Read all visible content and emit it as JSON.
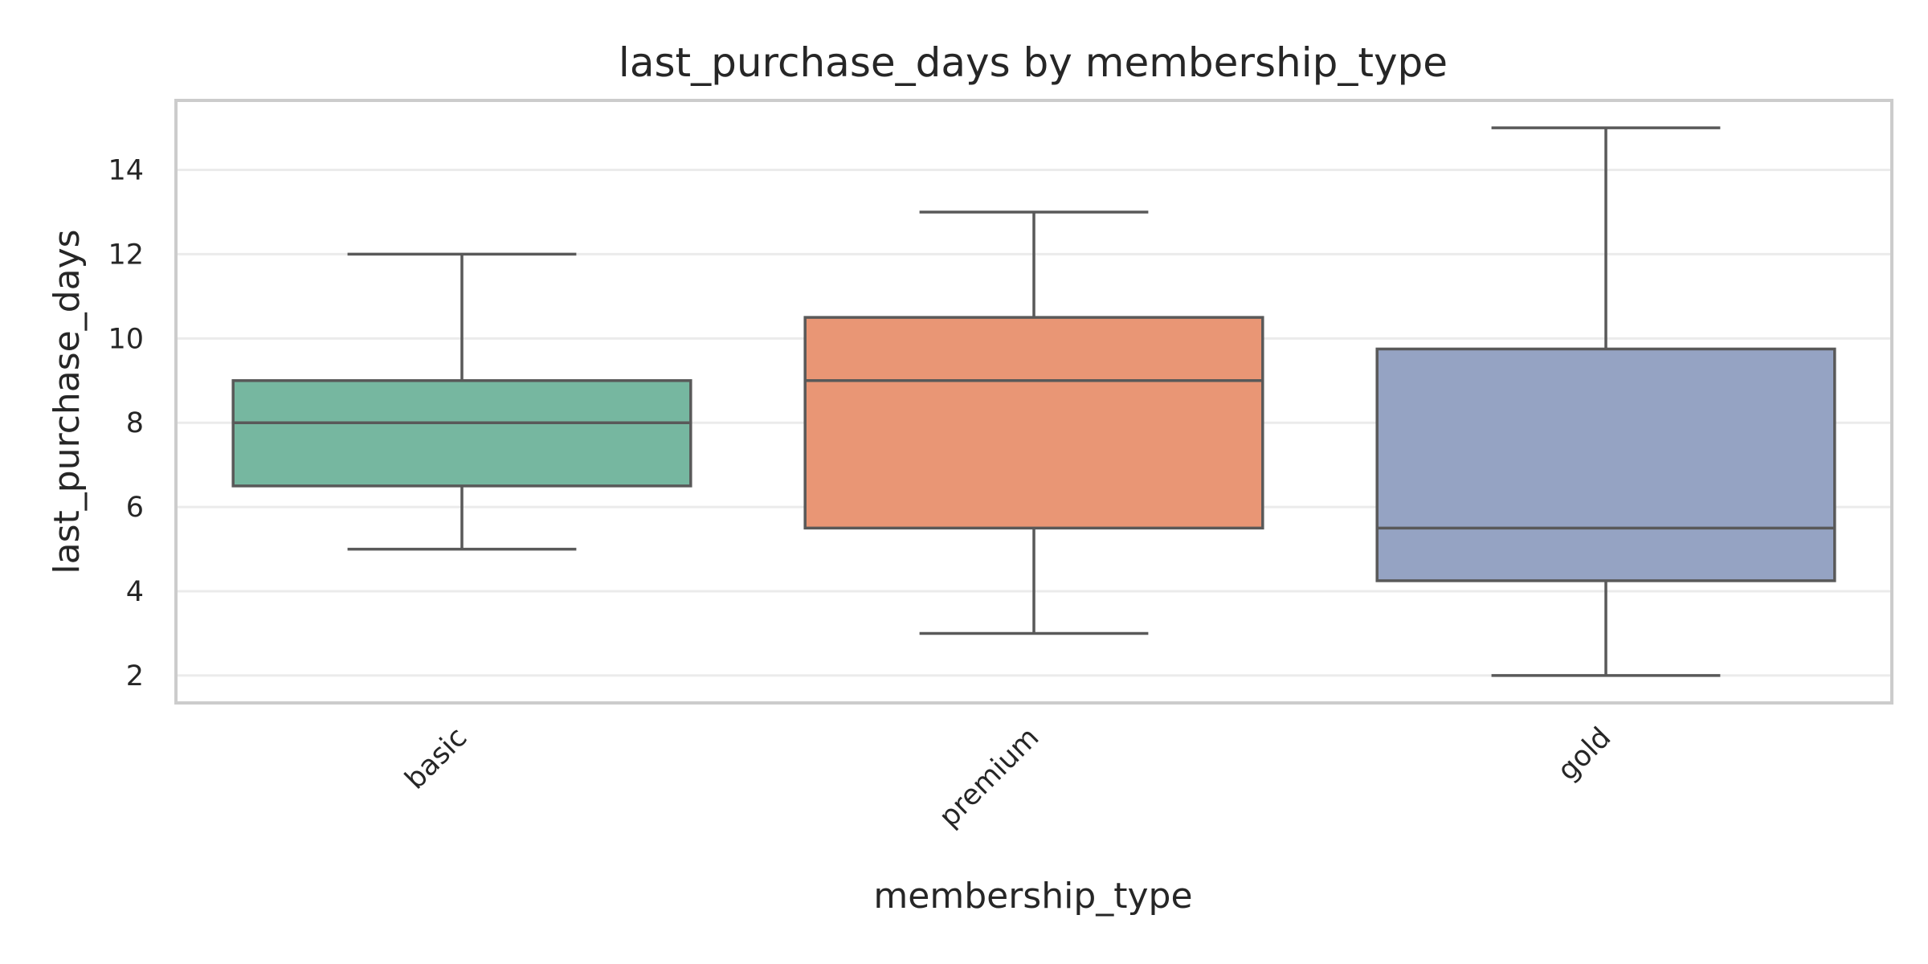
{
  "chart_data": {
    "type": "box",
    "title": "last_purchase_days by membership_type",
    "xlabel": "membership_type",
    "ylabel": "last_purchase_days",
    "ylim": [
      1.35,
      15.65
    ],
    "yticks": [
      2,
      4,
      6,
      8,
      10,
      12,
      14
    ],
    "grid": true,
    "categories": [
      "basic",
      "premium",
      "gold"
    ],
    "boxes": [
      {
        "category": "basic",
        "whisker_low": 5,
        "q1": 6.5,
        "median": 8,
        "q3": 9,
        "whisker_high": 12,
        "color": "#76b7a0"
      },
      {
        "category": "premium",
        "whisker_low": 3,
        "q1": 5.5,
        "median": 9,
        "q3": 10.5,
        "whisker_high": 13,
        "color": "#e99675"
      },
      {
        "category": "gold",
        "whisker_low": 2,
        "q1": 4.25,
        "median": 5.5,
        "q3": 9.75,
        "whisker_high": 15,
        "color": "#95a3c3"
      }
    ]
  }
}
